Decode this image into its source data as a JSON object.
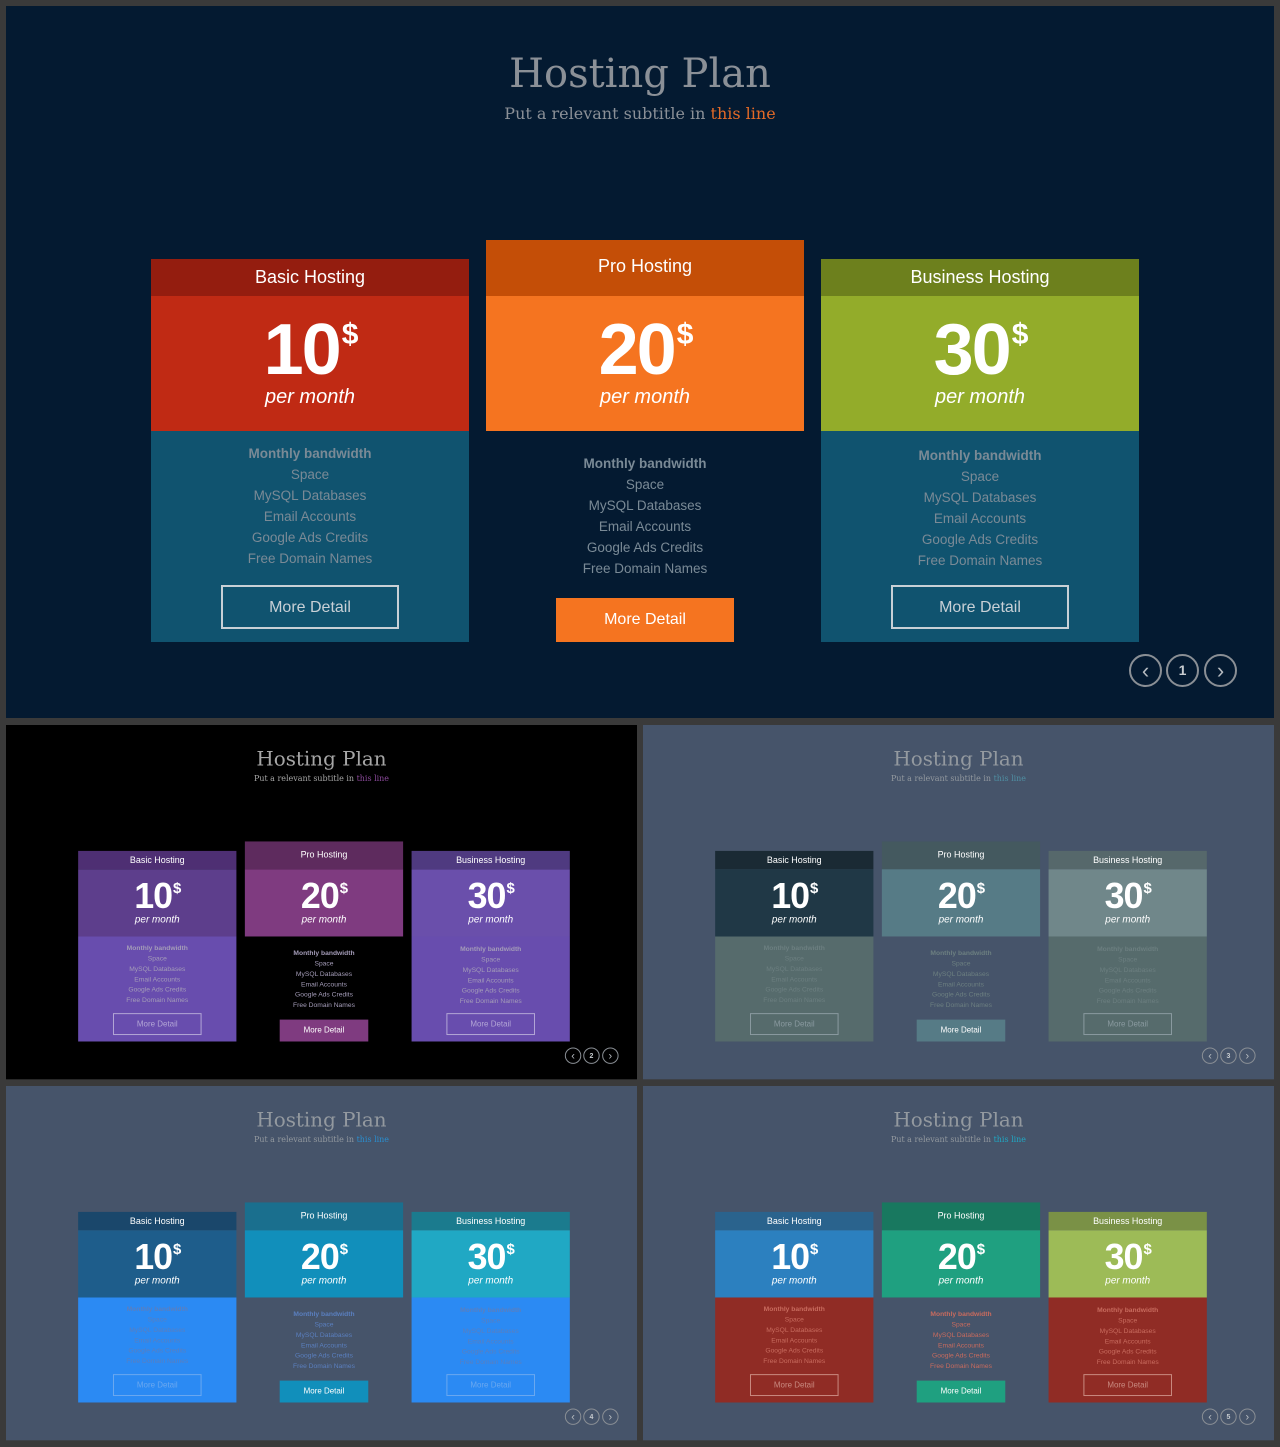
{
  "title": "Hosting Plan",
  "subtitle_prefix": "Put a relevant subtitle in ",
  "subtitle_highlight": "this line",
  "plans": [
    {
      "name": "Basic Hosting",
      "price": "10",
      "currency": "$",
      "period": "per month",
      "button": "More Detail"
    },
    {
      "name": "Pro Hosting",
      "price": "20",
      "currency": "$",
      "period": "per month",
      "button": "More Detail"
    },
    {
      "name": "Business Hosting",
      "price": "30",
      "currency": "$",
      "period": "per month",
      "button": "More Detail"
    }
  ],
  "features": [
    "Monthly bandwidth",
    "Space",
    "MySQL Databases",
    "Email  Accounts",
    "Google Ads Credits",
    "Free Domain Names"
  ],
  "nav": {
    "prev_icon": "chevron-left-icon",
    "next_icon": "chevron-right-icon"
  },
  "slides": [
    {
      "page": "1",
      "colors": {
        "bg": "#041a31",
        "title": "#8b9097",
        "sub": "#8b9097",
        "hl": "#e36a27",
        "head": [
          "#941d0f",
          "#c44e07",
          "#6d801d"
        ],
        "price": [
          "#c02a14",
          "#f57420",
          "#93ac2a"
        ],
        "body": [
          "#10536f",
          "#041a31",
          "#10536f"
        ],
        "feat": "#7a8a96",
        "btnbg": "#f57420",
        "btnborder": "#c8d0d6"
      }
    },
    {
      "page": "2",
      "colors": {
        "bg": "#000000",
        "title": "#a6a6a6",
        "sub": "#a6a6a6",
        "hl": "#8c4a9c",
        "head": [
          "#4e2f73",
          "#5e2b5e",
          "#4f3a80"
        ],
        "price": [
          "#5d3e8c",
          "#7f3b80",
          "#6a4fab"
        ],
        "body": [
          "#684dae",
          "#000000",
          "#684dae"
        ],
        "feat": "#a49cb8",
        "btnbg": "#7f3b80",
        "btnborder": "#b3a6d6"
      }
    },
    {
      "page": "3",
      "colors": {
        "bg": "#46546a",
        "title": "#93999f",
        "sub": "#93999f",
        "hl": "#4f8fa3",
        "head": [
          "#1a2a34",
          "#44595f",
          "#56686b"
        ],
        "price": [
          "#203846",
          "#567b86",
          "#70878a"
        ],
        "body": [
          "#566b6c",
          "#46546a",
          "#566b6c"
        ],
        "feat": "#6c7f80",
        "btnbg": "#567b86",
        "btnborder": "#8a9aa0"
      }
    },
    {
      "page": "4",
      "colors": {
        "bg": "#46546a",
        "title": "#93999f",
        "sub": "#93999f",
        "hl": "#2a8fd0",
        "head": [
          "#1a476b",
          "#1a6f8e",
          "#1b7b8e"
        ],
        "price": [
          "#1e5d8b",
          "#118fbb",
          "#20a8c4"
        ],
        "body": [
          "#2b8af3",
          "#46546a",
          "#2b8af3"
        ],
        "feat": "#5a7fbf",
        "btnbg": "#118fbb",
        "btnborder": "#6aa8f0"
      }
    },
    {
      "page": "5",
      "colors": {
        "bg": "#46546a",
        "title": "#93999f",
        "sub": "#93999f",
        "hl": "#20a8c4",
        "head": [
          "#2a638d",
          "#18785f",
          "#7a9146"
        ],
        "price": [
          "#2c80bf",
          "#1fa080",
          "#9dbb57"
        ],
        "body": [
          "#902c25",
          "#46546a",
          "#902c25"
        ],
        "feat": "#c86b5e",
        "btnbg": "#1fa080",
        "btnborder": "#c98a80"
      }
    }
  ]
}
